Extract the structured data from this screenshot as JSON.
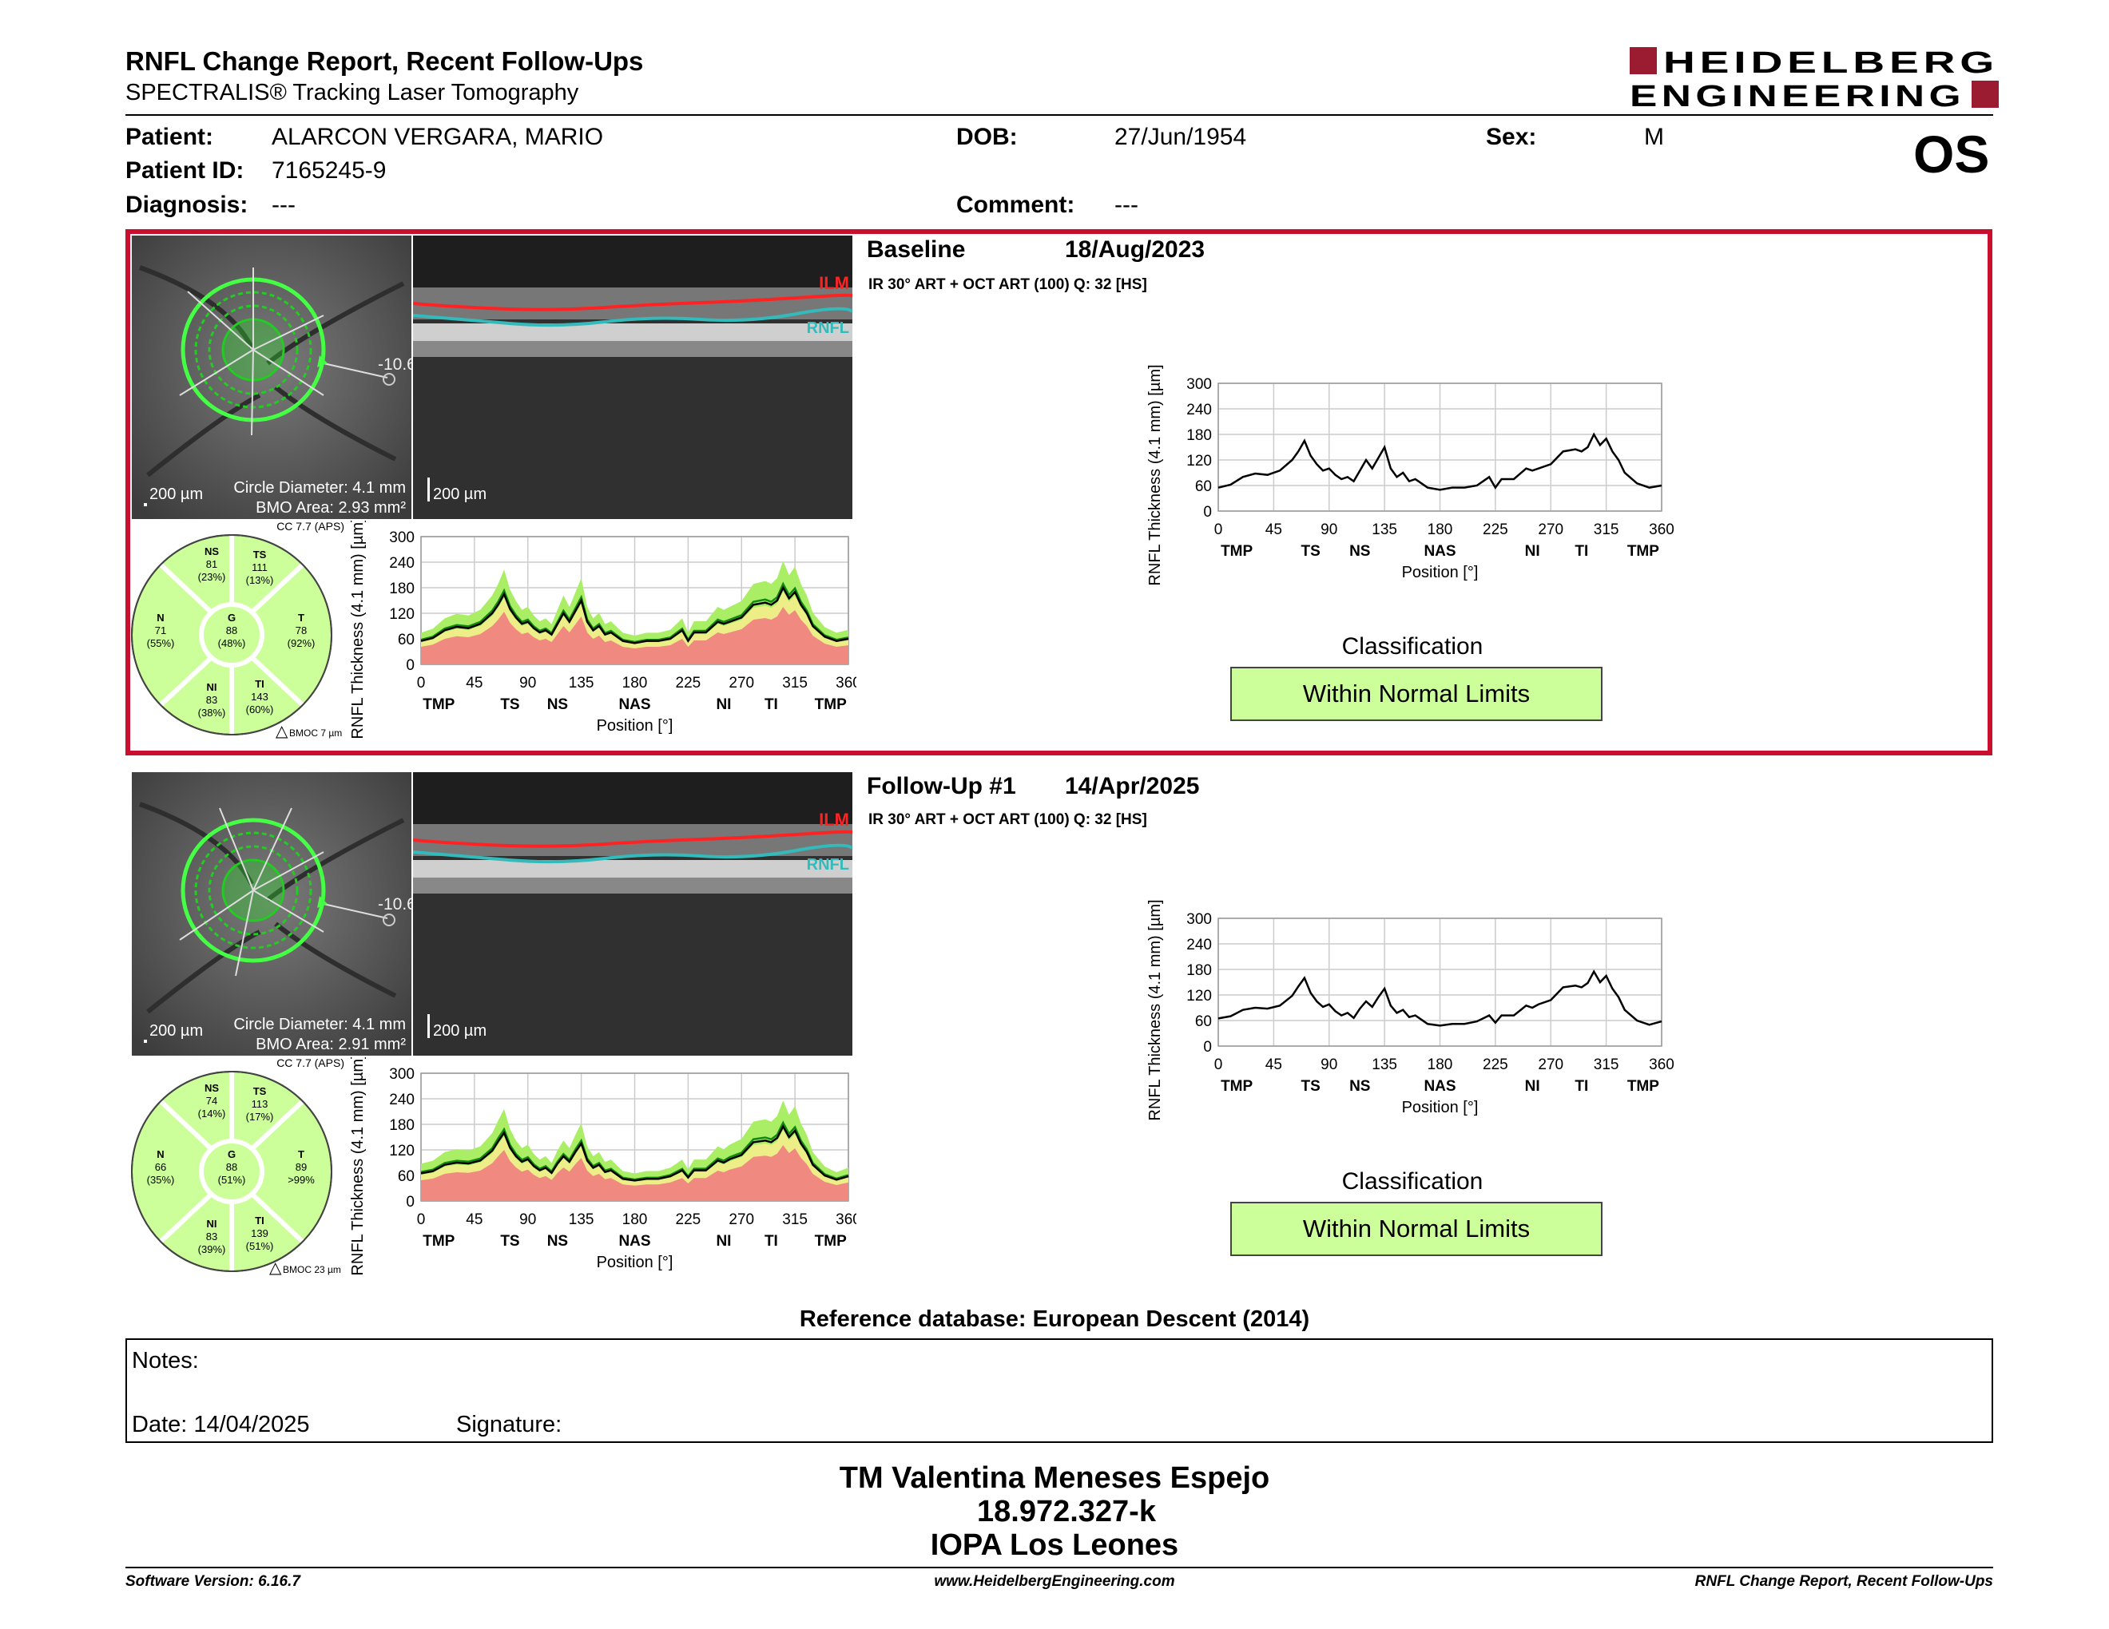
{
  "header": {
    "title": "RNFL Change Report, Recent Follow-Ups",
    "subtitle": "SPECTRALIS® Tracking Laser Tomography",
    "logo_line1": "HEIDELBERG",
    "logo_line2": "ENGINEERING",
    "eye": "OS"
  },
  "patient": {
    "name_label": "Patient:",
    "name": "ALARCON VERGARA, MARIO",
    "id_label": "Patient ID:",
    "id": "7165245-9",
    "diag_label": "Diagnosis:",
    "diag": "---",
    "dob_label": "DOB:",
    "dob": "27/Jun/1954",
    "comment_label": "Comment:",
    "comment": "---",
    "sex_label": "Sex:",
    "sex": "M"
  },
  "scans": [
    {
      "title": "Baseline",
      "date": "18/Aug/2023",
      "params": "IR 30° ART + OCT ART (100) Q: 32 [HS]",
      "fundus_scale": "200 µm",
      "circle_diameter": "Circle Diameter: 4.1 mm",
      "bmo_area": "BMO Area: 2.93 mm²",
      "offset": "-10.6",
      "bscan_scale": "200 µm",
      "ilm": "ILM",
      "rnfl": "RNFL",
      "cc": "CC 7.7 (APS)",
      "bmoc": "BMOC 7 µm",
      "sectors": {
        "NS": {
          "label": "NS",
          "value": "81",
          "pct": "(23%)"
        },
        "TS": {
          "label": "TS",
          "value": "111",
          "pct": "(13%)"
        },
        "N": {
          "label": "N",
          "value": "71",
          "pct": "(55%)"
        },
        "G": {
          "label": "G",
          "value": "88",
          "pct": "(48%)"
        },
        "T": {
          "label": "T",
          "value": "78",
          "pct": "(92%)"
        },
        "NI": {
          "label": "NI",
          "value": "83",
          "pct": "(38%)"
        },
        "TI": {
          "label": "TI",
          "value": "143",
          "pct": "(60%)"
        }
      },
      "classification_title": "Classification",
      "classification": "Within Normal Limits"
    },
    {
      "title": "Follow-Up #1",
      "date": "14/Apr/2025",
      "params": "IR 30° ART + OCT ART (100) Q: 32 [HS]",
      "fundus_scale": "200 µm",
      "circle_diameter": "Circle Diameter: 4.1 mm",
      "bmo_area": "BMO Area: 2.91 mm²",
      "offset": "-10.6",
      "bscan_scale": "200 µm",
      "ilm": "ILM",
      "rnfl": "RNFL",
      "cc": "CC 7.7 (APS)",
      "bmoc": "BMOC 23 µm",
      "sectors": {
        "NS": {
          "label": "NS",
          "value": "74",
          "pct": "(14%)"
        },
        "TS": {
          "label": "TS",
          "value": "113",
          "pct": "(17%)"
        },
        "N": {
          "label": "N",
          "value": "66",
          "pct": "(35%)"
        },
        "G": {
          "label": "G",
          "value": "88",
          "pct": "(51%)"
        },
        "T": {
          "label": "T",
          "value": "89",
          "pct": ">99%"
        },
        "NI": {
          "label": "NI",
          "value": "83",
          "pct": "(39%)"
        },
        "TI": {
          "label": "TI",
          "value": "139",
          "pct": "(51%)"
        }
      },
      "classification_title": "Classification",
      "classification": "Within Normal Limits"
    }
  ],
  "chart_data": [
    {
      "type": "line",
      "ylabel": "RNFL Thickness (4.1 mm) [µm]",
      "xlabel": "Position [°]",
      "xlim": [
        0,
        360
      ],
      "ylim": [
        0,
        300
      ],
      "xticks": [
        0,
        45,
        90,
        135,
        180,
        225,
        270,
        315,
        360
      ],
      "yticks": [
        0,
        60,
        120,
        180,
        240,
        300
      ],
      "sector_labels": [
        "TMP",
        "TS",
        "NS",
        "NAS",
        "NI",
        "TI",
        "TMP"
      ],
      "sector_positions": [
        15,
        75,
        115,
        180,
        255,
        295,
        345
      ],
      "x": [
        0,
        10,
        20,
        30,
        40,
        50,
        60,
        65,
        70,
        75,
        80,
        85,
        90,
        95,
        100,
        105,
        110,
        115,
        120,
        125,
        130,
        135,
        140,
        145,
        150,
        155,
        160,
        165,
        170,
        180,
        190,
        200,
        210,
        215,
        220,
        225,
        230,
        240,
        250,
        255,
        260,
        270,
        280,
        290,
        295,
        300,
        305,
        310,
        315,
        320,
        325,
        330,
        340,
        350,
        360
      ],
      "series": [
        {
          "values": [
            55,
            62,
            80,
            88,
            85,
            95,
            120,
            140,
            165,
            130,
            110,
            95,
            100,
            85,
            75,
            80,
            70,
            95,
            120,
            100,
            125,
            150,
            100,
            80,
            90,
            70,
            75,
            65,
            55,
            50,
            55,
            55,
            60,
            70,
            80,
            55,
            75,
            75,
            100,
            95,
            100,
            110,
            140,
            145,
            140,
            150,
            180,
            155,
            170,
            140,
            120,
            90,
            65,
            55,
            60
          ]
        }
      ]
    },
    {
      "type": "line",
      "ylabel": "RNFL Thickness (4.1 mm) [µm]",
      "xlabel": "Position [°]",
      "xlim": [
        0,
        360
      ],
      "ylim": [
        0,
        300
      ],
      "xticks": [
        0,
        45,
        90,
        135,
        180,
        225,
        270,
        315,
        360
      ],
      "yticks": [
        0,
        60,
        120,
        180,
        240,
        300
      ],
      "sector_labels": [
        "TMP",
        "TS",
        "NS",
        "NAS",
        "NI",
        "TI",
        "TMP"
      ],
      "sector_positions": [
        15,
        75,
        115,
        180,
        255,
        295,
        345
      ],
      "x": [
        0,
        10,
        20,
        30,
        40,
        50,
        60,
        65,
        70,
        75,
        80,
        85,
        90,
        95,
        100,
        105,
        110,
        115,
        120,
        125,
        130,
        135,
        140,
        145,
        150,
        155,
        160,
        165,
        170,
        180,
        190,
        200,
        210,
        215,
        220,
        225,
        230,
        240,
        250,
        255,
        260,
        270,
        280,
        290,
        295,
        300,
        305,
        310,
        315,
        320,
        325,
        330,
        340,
        350,
        360
      ],
      "series": [
        {
          "values": [
            65,
            70,
            85,
            90,
            88,
            95,
            118,
            140,
            160,
            125,
            105,
            92,
            98,
            82,
            72,
            78,
            66,
            88,
            105,
            92,
            115,
            135,
            95,
            78,
            85,
            68,
            72,
            62,
            52,
            48,
            52,
            52,
            58,
            65,
            72,
            55,
            72,
            72,
            95,
            90,
            98,
            108,
            138,
            142,
            138,
            148,
            175,
            150,
            165,
            135,
            115,
            85,
            60,
            50,
            58
          ]
        }
      ]
    }
  ]
}
